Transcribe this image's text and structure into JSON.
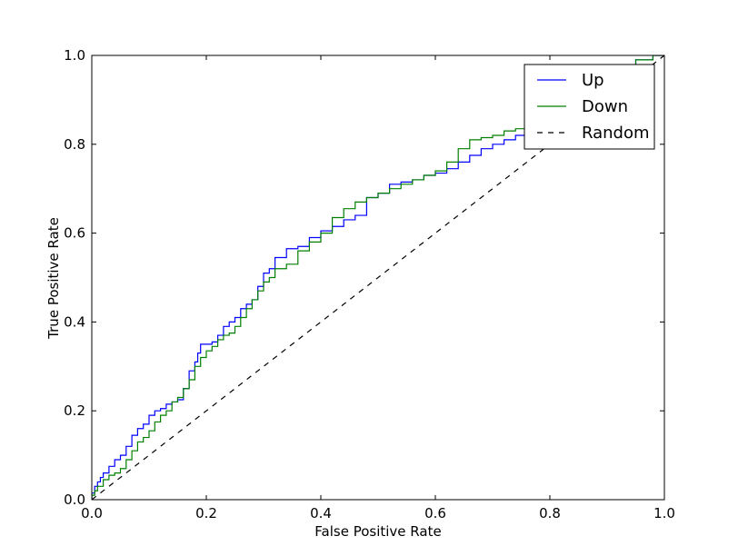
{
  "chart_data": {
    "type": "line",
    "title": "",
    "xlabel": "False Positive Rate",
    "ylabel": "True Positive Rate",
    "xlim": [
      0.0,
      1.0
    ],
    "ylim": [
      0.0,
      1.0
    ],
    "grid": false,
    "legend_position": "top-right",
    "xticks": [
      "0.0",
      "0.2",
      "0.4",
      "0.6",
      "0.8",
      "1.0"
    ],
    "yticks": [
      "0.0",
      "0.2",
      "0.4",
      "0.6",
      "0.8",
      "1.0"
    ],
    "series": [
      {
        "name": "Up",
        "color": "#0000ff",
        "style": "solid",
        "x": [
          0.0,
          0.005,
          0.01,
          0.015,
          0.02,
          0.03,
          0.04,
          0.05,
          0.06,
          0.07,
          0.08,
          0.09,
          0.1,
          0.11,
          0.12,
          0.13,
          0.14,
          0.15,
          0.16,
          0.17,
          0.18,
          0.185,
          0.19,
          0.2,
          0.21,
          0.22,
          0.23,
          0.24,
          0.25,
          0.26,
          0.27,
          0.28,
          0.29,
          0.3,
          0.31,
          0.32,
          0.34,
          0.36,
          0.38,
          0.4,
          0.42,
          0.44,
          0.46,
          0.48,
          0.5,
          0.52,
          0.54,
          0.56,
          0.58,
          0.6,
          0.62,
          0.64,
          0.66,
          0.68,
          0.7,
          0.72,
          0.74,
          0.76,
          0.78,
          0.8,
          0.85,
          0.9,
          0.95,
          0.98,
          1.0
        ],
        "y": [
          0.0,
          0.015,
          0.03,
          0.04,
          0.05,
          0.06,
          0.075,
          0.09,
          0.1,
          0.12,
          0.145,
          0.16,
          0.17,
          0.19,
          0.2,
          0.205,
          0.215,
          0.22,
          0.225,
          0.25,
          0.29,
          0.31,
          0.33,
          0.35,
          0.35,
          0.355,
          0.37,
          0.39,
          0.4,
          0.41,
          0.43,
          0.44,
          0.45,
          0.48,
          0.51,
          0.52,
          0.545,
          0.565,
          0.57,
          0.59,
          0.605,
          0.615,
          0.63,
          0.64,
          0.68,
          0.69,
          0.71,
          0.715,
          0.72,
          0.73,
          0.735,
          0.745,
          0.76,
          0.775,
          0.79,
          0.8,
          0.81,
          0.82,
          0.83,
          0.84,
          0.88,
          0.93,
          0.97,
          0.99,
          1.0
        ]
      },
      {
        "name": "Down",
        "color": "#008000",
        "style": "solid",
        "x": [
          0.0,
          0.005,
          0.01,
          0.02,
          0.03,
          0.04,
          0.05,
          0.06,
          0.07,
          0.08,
          0.09,
          0.1,
          0.11,
          0.12,
          0.13,
          0.14,
          0.15,
          0.16,
          0.17,
          0.18,
          0.19,
          0.2,
          0.21,
          0.22,
          0.23,
          0.24,
          0.25,
          0.26,
          0.27,
          0.28,
          0.29,
          0.3,
          0.31,
          0.32,
          0.34,
          0.36,
          0.38,
          0.4,
          0.42,
          0.44,
          0.46,
          0.48,
          0.5,
          0.52,
          0.54,
          0.56,
          0.58,
          0.6,
          0.62,
          0.64,
          0.66,
          0.68,
          0.7,
          0.72,
          0.74,
          0.76,
          0.78,
          0.8,
          0.85,
          0.9,
          0.95,
          0.98,
          1.0
        ],
        "y": [
          0.0,
          0.01,
          0.02,
          0.03,
          0.045,
          0.055,
          0.06,
          0.07,
          0.09,
          0.11,
          0.13,
          0.14,
          0.155,
          0.175,
          0.19,
          0.2,
          0.22,
          0.23,
          0.25,
          0.27,
          0.3,
          0.32,
          0.335,
          0.345,
          0.36,
          0.37,
          0.375,
          0.39,
          0.41,
          0.43,
          0.45,
          0.47,
          0.49,
          0.5,
          0.52,
          0.53,
          0.56,
          0.58,
          0.6,
          0.635,
          0.655,
          0.67,
          0.68,
          0.69,
          0.7,
          0.71,
          0.72,
          0.73,
          0.74,
          0.76,
          0.79,
          0.81,
          0.815,
          0.82,
          0.83,
          0.835,
          0.84,
          0.85,
          0.88,
          0.92,
          0.97,
          0.99,
          1.0
        ]
      },
      {
        "name": "Random",
        "color": "#000000",
        "style": "dashed",
        "x": [
          0.0,
          1.0
        ],
        "y": [
          0.0,
          1.0
        ]
      }
    ]
  }
}
